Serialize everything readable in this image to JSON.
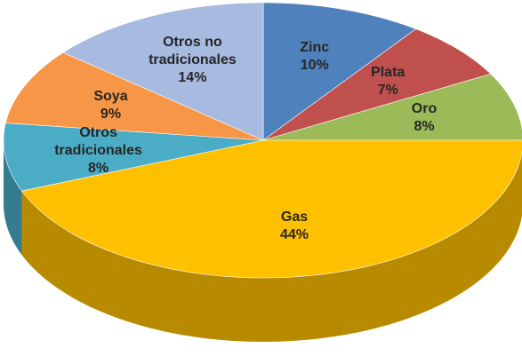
{
  "chart_data": {
    "type": "pie",
    "categories": [
      "Zinc",
      "Plata",
      "Oro",
      "Gas",
      "Otros tradicionales",
      "Soya",
      "Otros no tradicionales"
    ],
    "values": [
      10,
      7,
      8,
      44,
      8,
      9,
      14
    ],
    "value_labels": [
      "10%",
      "7%",
      "8%",
      "44%",
      "8%",
      "9%",
      "14%"
    ],
    "colors": [
      "#4f81bd",
      "#c0504d",
      "#9bbb59",
      "#ffc000",
      "#4bacc6",
      "#f79646",
      "#a7badf"
    ]
  }
}
